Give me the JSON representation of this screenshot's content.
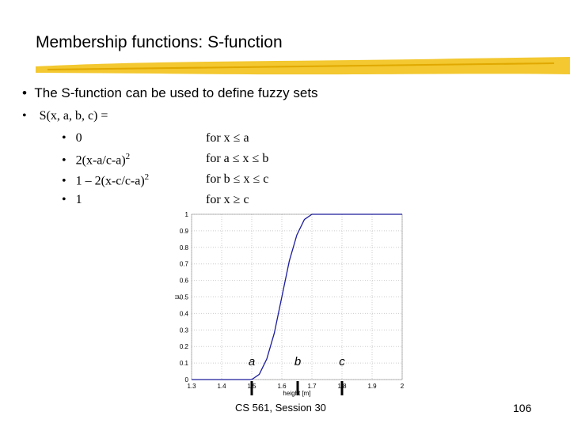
{
  "header": {
    "title": "Membership functions: S-function"
  },
  "bullets": [
    "The S-function can be used to define fuzzy sets",
    "S(x, a, b, c) ="
  ],
  "cases": [
    {
      "expr": "0",
      "cond": "for x ≤ a"
    },
    {
      "expr": "2(x-a/c-a)",
      "sup": "2",
      "cond": "for a ≤ x ≤ b"
    },
    {
      "expr": "1 – 2(x-c/c-a)",
      "sup": "2",
      "cond": "for b ≤ x ≤ c"
    },
    {
      "expr": "1",
      "cond": "for x ≥ c"
    }
  ],
  "footer": {
    "session": "CS 561,  Session 30",
    "page": "106"
  },
  "chart_data": {
    "type": "line",
    "xlabel": "height [m]",
    "ylabel": "μ",
    "x": [
      1.3,
      1.5,
      1.525,
      1.55,
      1.575,
      1.6,
      1.625,
      1.65,
      1.675,
      1.7,
      2
    ],
    "series": [
      {
        "name": "S-function",
        "color": "#1c1c9c",
        "values": [
          0,
          0,
          0.03125,
          0.125,
          0.28125,
          0.5,
          0.71875,
          0.875,
          0.96875,
          1,
          1
        ]
      }
    ],
    "xlim": [
      1.3,
      2
    ],
    "xticks": [
      1.3,
      1.4,
      1.5,
      1.6,
      1.7,
      1.8,
      1.9,
      2
    ],
    "ylim": [
      0,
      1
    ],
    "yticks": [
      0,
      0.1,
      0.2,
      0.3,
      0.4,
      0.5,
      0.6,
      0.7,
      0.8,
      0.9,
      1
    ],
    "grid": true,
    "annotations": [
      "a",
      "b",
      "c"
    ]
  }
}
